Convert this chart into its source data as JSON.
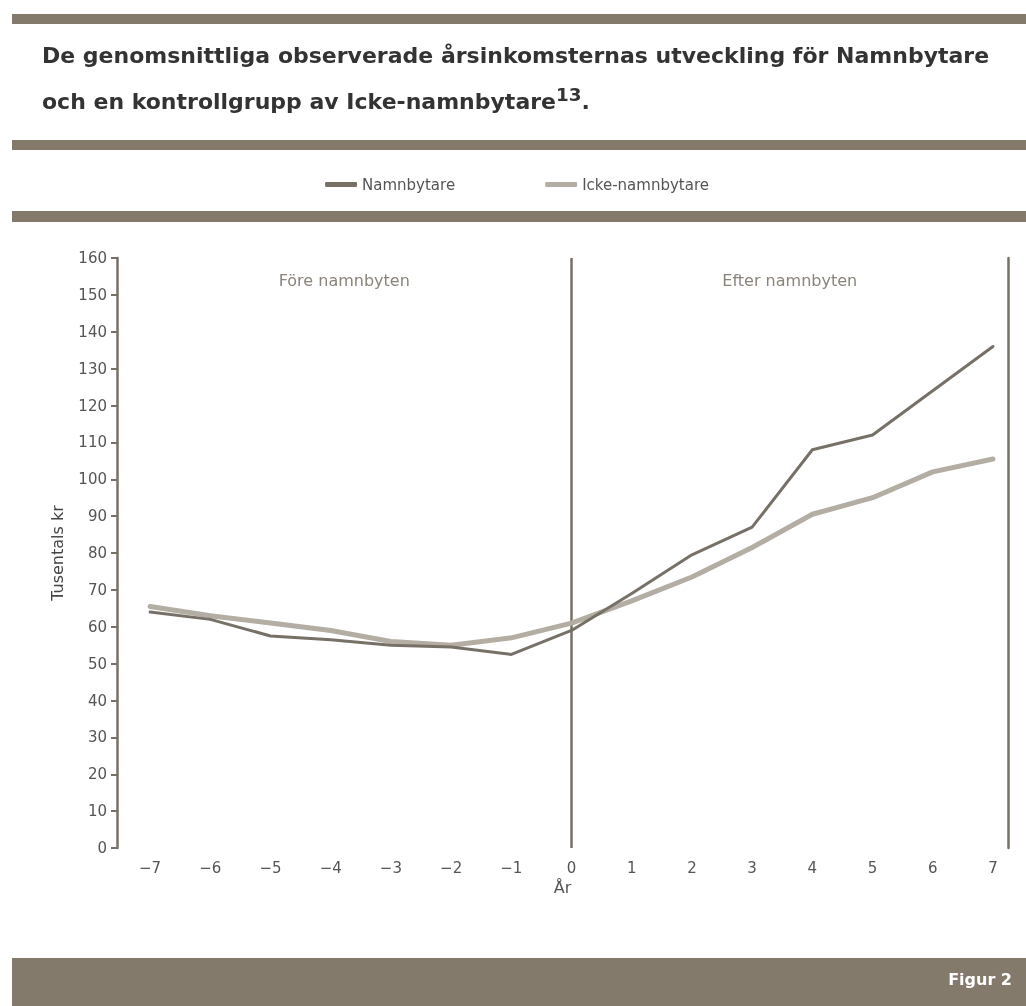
{
  "chart_data": {
    "type": "line",
    "title": "De genomsnittliga observerade årsinkomsternas utveckling för Namnbytare och en kontrollgrupp av Icke-namnbytare$^{13}$.",
    "xlabel": "År",
    "ylabel": "Tusentals kr",
    "x": [
      -7,
      -6,
      -5,
      -4,
      -3,
      -2,
      -1,
      0,
      1,
      2,
      3,
      4,
      5,
      6,
      7
    ],
    "series": [
      {
        "name": "Namnbytare",
        "color": "#777066",
        "values": [
          64,
          62,
          57.5,
          56.5,
          55,
          54.5,
          52.5,
          59,
          69,
          79.5,
          87,
          108,
          112,
          124,
          136
        ]
      },
      {
        "name": "Icke-namnbytare",
        "color": "#b3ada3",
        "values": [
          65.5,
          63,
          61,
          59,
          56,
          55,
          57,
          61,
          67,
          73.5,
          81.5,
          90.5,
          95,
          102,
          105.5
        ]
      }
    ],
    "xlim": [
      -7.55,
      7.25
    ],
    "xticks": [
      {
        "value": -7,
        "label": "−7"
      },
      {
        "value": -6,
        "label": "−6"
      },
      {
        "value": -5,
        "label": "−5"
      },
      {
        "value": -4,
        "label": "−4"
      },
      {
        "value": -3,
        "label": "−3"
      },
      {
        "value": -2,
        "label": "−2"
      },
      {
        "value": -1,
        "label": "−1"
      },
      0,
      1,
      2,
      3,
      4,
      5,
      6,
      7
    ],
    "ylim": [
      0,
      160
    ],
    "yticks": [
      0,
      10,
      20,
      30,
      40,
      50,
      60,
      70,
      80,
      90,
      100,
      110,
      120,
      130,
      140,
      150,
      160
    ],
    "ref_lines": [
      {
        "axis": "x",
        "value": 0,
        "color": "#777066"
      }
    ],
    "annotations": [
      "Före namnbyten",
      "Efter namnbyten",
      "Figur 2"
    ],
    "legend": "top",
    "grid": false,
    "marker": "none",
    "line_style": "solid"
  }
}
